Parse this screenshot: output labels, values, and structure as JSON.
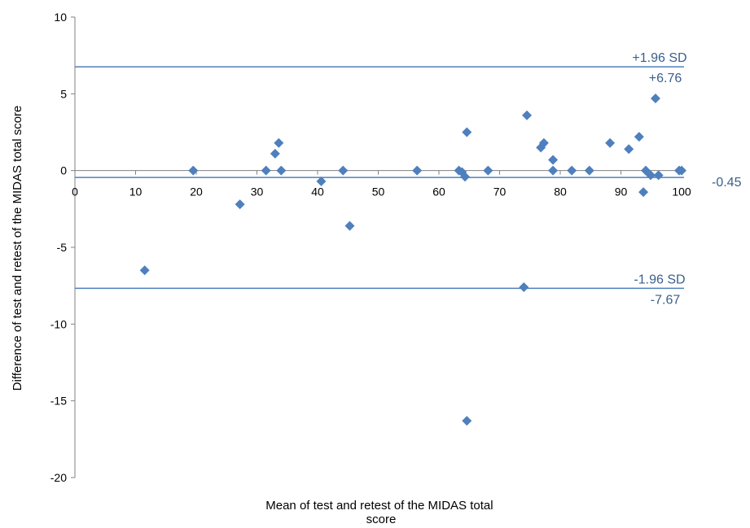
{
  "chart_data": {
    "type": "scatter",
    "title": "",
    "xlabel": "Mean of test and retest of the MIDAS total score",
    "ylabel": "Difference of test and retest of the MIDAS total score",
    "xlim": [
      0,
      100
    ],
    "ylim": [
      -20,
      10
    ],
    "x_ticks": [
      0,
      10,
      20,
      30,
      40,
      50,
      60,
      70,
      80,
      90,
      100
    ],
    "y_ticks": [
      10,
      5,
      0,
      -5,
      -10,
      -15,
      -20
    ],
    "grid": false,
    "legend": "none",
    "colors": {
      "points": "#4F7FBD",
      "reference_lines": "#4F7FBD",
      "axis": "#808080",
      "line_labels": "#3A5F8C"
    },
    "reference_lines": [
      {
        "name": "upper_loa",
        "label": "+1.96 SD",
        "value_label": "+6.76",
        "y": 6.76
      },
      {
        "name": "mean",
        "value_label": "-0.45",
        "y": -0.45
      },
      {
        "name": "lower_loa",
        "label": "-1.96 SD",
        "value_label": "-7.67",
        "y": -7.67
      }
    ],
    "points": [
      {
        "x": 11.5,
        "y": -6.5
      },
      {
        "x": 19.5,
        "y": 0
      },
      {
        "x": 27.2,
        "y": -2.2
      },
      {
        "x": 31.5,
        "y": 0
      },
      {
        "x": 33.0,
        "y": 1.1
      },
      {
        "x": 33.6,
        "y": 1.8
      },
      {
        "x": 34.0,
        "y": 0
      },
      {
        "x": 40.6,
        "y": -0.7
      },
      {
        "x": 44.2,
        "y": 0
      },
      {
        "x": 45.3,
        "y": -3.6
      },
      {
        "x": 56.4,
        "y": 0
      },
      {
        "x": 63.3,
        "y": 0
      },
      {
        "x": 63.8,
        "y": -0.1
      },
      {
        "x": 64.3,
        "y": -0.4
      },
      {
        "x": 64.6,
        "y": 2.5
      },
      {
        "x": 64.6,
        "y": -16.3
      },
      {
        "x": 68.1,
        "y": 0
      },
      {
        "x": 74.0,
        "y": -7.6
      },
      {
        "x": 74.5,
        "y": 3.6
      },
      {
        "x": 76.8,
        "y": 1.5
      },
      {
        "x": 77.3,
        "y": 1.8
      },
      {
        "x": 78.8,
        "y": 0.7
      },
      {
        "x": 78.8,
        "y": 0
      },
      {
        "x": 81.9,
        "y": 0
      },
      {
        "x": 84.8,
        "y": 0
      },
      {
        "x": 88.2,
        "y": 1.8
      },
      {
        "x": 91.3,
        "y": 1.4
      },
      {
        "x": 93.0,
        "y": 2.2
      },
      {
        "x": 93.7,
        "y": -1.4
      },
      {
        "x": 94.1,
        "y": 0
      },
      {
        "x": 94.9,
        "y": -0.3
      },
      {
        "x": 95.7,
        "y": 4.7
      },
      {
        "x": 96.2,
        "y": -0.3
      },
      {
        "x": 99.6,
        "y": 0
      },
      {
        "x": 100.0,
        "y": 0
      }
    ]
  }
}
